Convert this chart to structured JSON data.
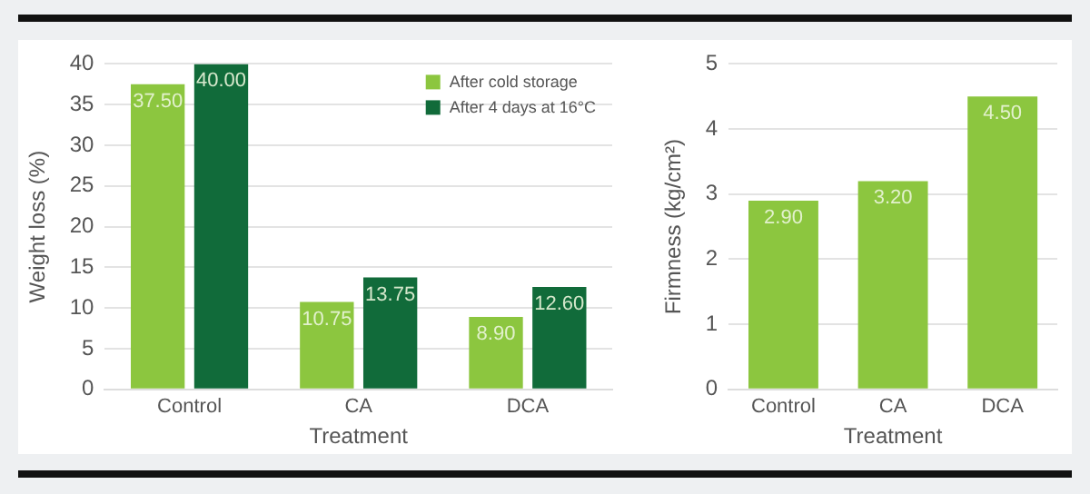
{
  "chart_data": [
    {
      "type": "bar",
      "xlabel": "Treatment",
      "ylabel": "Weight loss (%)",
      "categories": [
        "Control",
        "CA",
        "DCA"
      ],
      "series": [
        {
          "name": "After cold storage",
          "color": "#8cc63f",
          "values": [
            37.5,
            10.75,
            8.9
          ],
          "value_labels": [
            "37.50",
            "10.75",
            "8.90"
          ]
        },
        {
          "name": "After 4 days at 16°C",
          "color": "#116b3a",
          "values": [
            40,
            13.75,
            12.6
          ],
          "value_labels": [
            "40.00",
            "13.75",
            "12.60"
          ]
        }
      ],
      "ylim": [
        0,
        40
      ],
      "yticks": [
        0,
        5,
        10,
        15,
        20,
        25,
        30,
        35,
        40
      ],
      "grid": "y",
      "legend": "top right"
    },
    {
      "type": "bar",
      "xlabel": "Treatment",
      "ylabel": "Firmness (kg/cm²)",
      "categories": [
        "Control",
        "CA",
        "DCA"
      ],
      "series": [
        {
          "color": "#8cc63f",
          "values": [
            2.9,
            3.2,
            4.5
          ],
          "value_labels": [
            "2.90",
            "3.20",
            "4.50"
          ]
        }
      ],
      "ylim": [
        0,
        5
      ],
      "yticks": [
        0,
        1,
        2,
        3,
        4,
        5
      ],
      "grid": "y"
    }
  ]
}
